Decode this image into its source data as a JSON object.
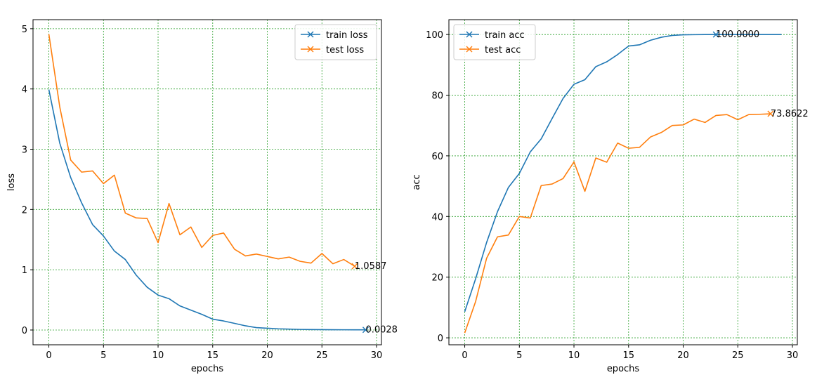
{
  "chart_data": [
    {
      "type": "line",
      "xlabel": "epochs",
      "ylabel": "loss",
      "xlim": [
        -1.45,
        30.45
      ],
      "ylim": [
        -0.245,
        5.15
      ],
      "xticks": [
        0,
        5,
        10,
        15,
        20,
        25,
        30
      ],
      "yticks": [
        0,
        1,
        2,
        3,
        4,
        5
      ],
      "grid": true,
      "legend_position": "top-right",
      "series": [
        {
          "name": "train loss",
          "color": "#1f77b4",
          "x": [
            0,
            1,
            2,
            3,
            4,
            5,
            6,
            7,
            8,
            9,
            10,
            11,
            12,
            13,
            14,
            15,
            16,
            17,
            18,
            19,
            20,
            21,
            22,
            23,
            24,
            25,
            26,
            27,
            28,
            29
          ],
          "values": [
            3.99,
            3.1,
            2.53,
            2.11,
            1.75,
            1.56,
            1.31,
            1.17,
            0.91,
            0.71,
            0.58,
            0.52,
            0.4,
            0.33,
            0.26,
            0.18,
            0.15,
            0.11,
            0.07,
            0.04,
            0.03,
            0.02,
            0.015,
            0.01,
            0.008,
            0.006,
            0.005,
            0.004,
            0.003,
            0.0028
          ],
          "marker_index": 29,
          "annotation": "0.0028"
        },
        {
          "name": "test loss",
          "color": "#ff7f0e",
          "x": [
            0,
            1,
            2,
            3,
            4,
            5,
            6,
            7,
            8,
            9,
            10,
            11,
            12,
            13,
            14,
            15,
            16,
            17,
            18,
            19,
            20,
            21,
            22,
            23,
            24,
            25,
            26,
            27,
            28
          ],
          "values": [
            4.91,
            3.7,
            2.82,
            2.62,
            2.64,
            2.43,
            2.57,
            1.94,
            1.86,
            1.85,
            1.45,
            2.1,
            1.58,
            1.71,
            1.37,
            1.57,
            1.61,
            1.34,
            1.23,
            1.26,
            1.22,
            1.18,
            1.21,
            1.14,
            1.11,
            1.27,
            1.1,
            1.17,
            1.0587
          ],
          "marker_index": 28,
          "annotation": "1.0587"
        }
      ]
    },
    {
      "type": "line",
      "xlabel": "epochs",
      "ylabel": "acc",
      "xlim": [
        -1.45,
        30.45
      ],
      "ylim": [
        -2.3,
        104.9
      ],
      "xticks": [
        0,
        5,
        10,
        15,
        20,
        25,
        30
      ],
      "yticks": [
        0,
        20,
        40,
        60,
        80,
        100
      ],
      "grid": true,
      "legend_position": "top-left",
      "series": [
        {
          "name": "train acc",
          "color": "#1f77b4",
          "x": [
            0,
            1,
            2,
            3,
            4,
            5,
            6,
            7,
            8,
            9,
            10,
            11,
            12,
            13,
            14,
            15,
            16,
            17,
            18,
            19,
            20,
            21,
            22,
            23,
            24,
            25,
            26,
            27,
            28,
            29
          ],
          "values": [
            8.6,
            19.5,
            31.4,
            41.6,
            49.6,
            54.2,
            61.3,
            65.6,
            72.3,
            78.9,
            83.6,
            85.1,
            89.4,
            91.0,
            93.4,
            96.2,
            96.6,
            98.1,
            99.1,
            99.7,
            99.9,
            99.95,
            100.0,
            100.0,
            100.0,
            100.0,
            100.0,
            100.0,
            100.0,
            100.0
          ],
          "marker_index": 23,
          "annotation": "100.0000"
        },
        {
          "name": "test acc",
          "color": "#ff7f0e",
          "x": [
            0,
            1,
            2,
            3,
            4,
            5,
            6,
            7,
            8,
            9,
            10,
            11,
            12,
            13,
            14,
            15,
            16,
            17,
            18,
            19,
            20,
            21,
            22,
            23,
            24,
            25,
            26,
            27,
            28
          ],
          "values": [
            1.6,
            12.0,
            26.2,
            33.3,
            33.9,
            40.0,
            39.5,
            50.2,
            50.7,
            52.5,
            58.0,
            48.3,
            59.3,
            57.9,
            64.2,
            62.5,
            62.8,
            66.2,
            67.7,
            70.0,
            70.2,
            72.1,
            71.0,
            73.3,
            73.6,
            71.9,
            73.6,
            73.7,
            73.8622
          ],
          "marker_index": 28,
          "annotation": "73.8622"
        }
      ]
    }
  ]
}
